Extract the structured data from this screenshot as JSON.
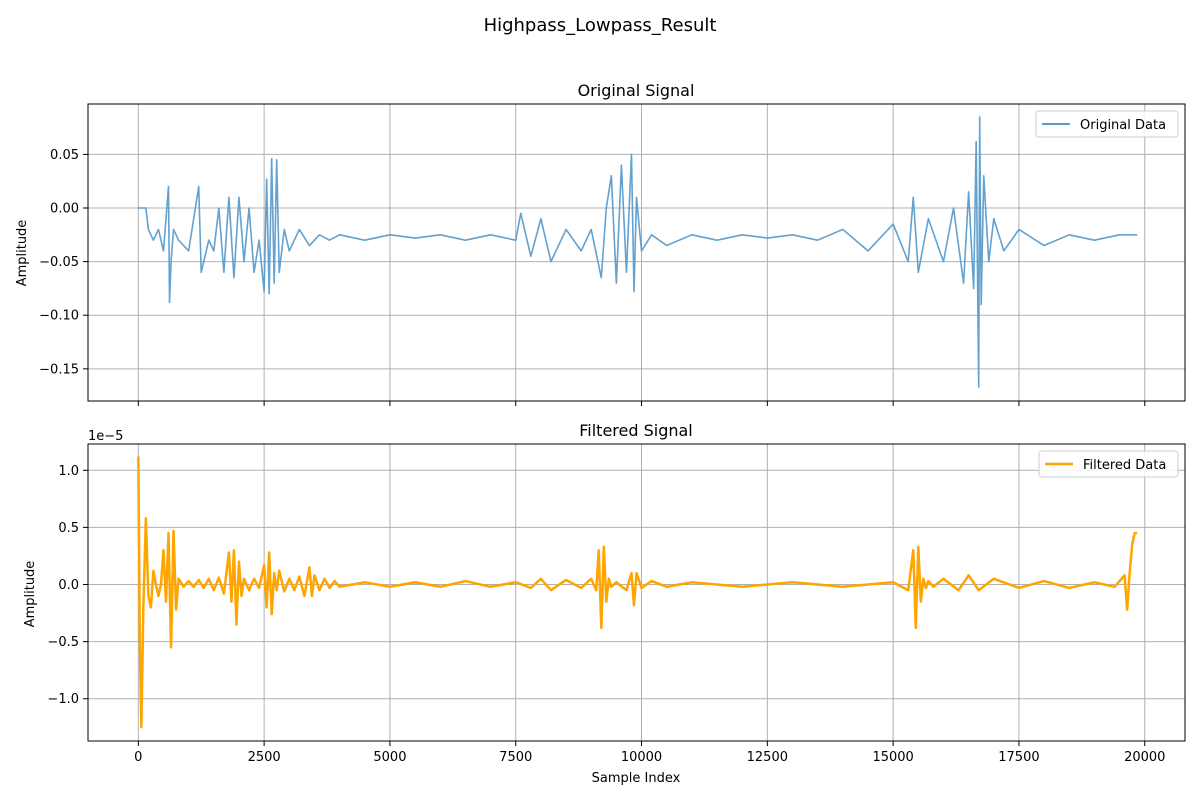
{
  "figure": {
    "title": "Highpass_Lowpass_Result"
  },
  "chart_data": [
    {
      "type": "line",
      "title": "Original Signal",
      "xlabel": "",
      "ylabel": "Amplitude",
      "xlim": [
        -1000,
        20800
      ],
      "ylim": [
        -0.18,
        0.097
      ],
      "x_ticks": [
        0,
        2500,
        5000,
        7500,
        10000,
        12500,
        15000,
        17500,
        20000
      ],
      "x_tick_labels": [
        "",
        "",
        "",
        "",
        "",
        "",
        "",
        "",
        ""
      ],
      "y_ticks": [
        0.05,
        0.0,
        -0.05,
        -0.1,
        -0.15
      ],
      "y_tick_labels": [
        "0.05",
        "0.00",
        "−0.05",
        "−0.10",
        "−0.15"
      ],
      "grid": true,
      "legend": {
        "position": "top-right",
        "entries": [
          "Original Data"
        ]
      },
      "series": [
        {
          "name": "Original Data",
          "color": "#5b9ccc",
          "x": [
            0,
            150,
            200,
            300,
            400,
            500,
            600,
            620,
            650,
            700,
            800,
            1000,
            1200,
            1250,
            1400,
            1500,
            1600,
            1700,
            1800,
            1900,
            2000,
            2100,
            2200,
            2300,
            2400,
            2500,
            2550,
            2600,
            2650,
            2700,
            2750,
            2800,
            2900,
            3000,
            3200,
            3400,
            3600,
            3800,
            4000,
            4500,
            5000,
            5500,
            6000,
            6500,
            7000,
            7500,
            7600,
            7800,
            8000,
            8200,
            8500,
            8800,
            9000,
            9200,
            9300,
            9400,
            9500,
            9600,
            9700,
            9800,
            9850,
            9900,
            10000,
            10200,
            10500,
            11000,
            11500,
            12000,
            12500,
            13000,
            13500,
            14000,
            14500,
            15000,
            15300,
            15400,
            15500,
            15700,
            16000,
            16200,
            16400,
            16500,
            16600,
            16650,
            16700,
            16720,
            16750,
            16800,
            16900,
            17000,
            17200,
            17500,
            18000,
            18500,
            19000,
            19500,
            19850
          ],
          "y": [
            0.0,
            0.0,
            -0.02,
            -0.03,
            -0.02,
            -0.04,
            0.02,
            -0.088,
            -0.05,
            -0.02,
            -0.03,
            -0.04,
            0.02,
            -0.06,
            -0.03,
            -0.04,
            0.0,
            -0.06,
            0.01,
            -0.065,
            0.01,
            -0.05,
            0.0,
            -0.06,
            -0.03,
            -0.078,
            0.027,
            -0.08,
            0.046,
            -0.07,
            0.045,
            -0.06,
            -0.02,
            -0.04,
            -0.02,
            -0.035,
            -0.025,
            -0.03,
            -0.025,
            -0.03,
            -0.025,
            -0.028,
            -0.025,
            -0.03,
            -0.025,
            -0.03,
            -0.005,
            -0.045,
            -0.01,
            -0.05,
            -0.02,
            -0.04,
            -0.02,
            -0.065,
            0.0,
            0.03,
            -0.07,
            0.04,
            -0.06,
            0.05,
            -0.078,
            0.01,
            -0.04,
            -0.025,
            -0.035,
            -0.025,
            -0.03,
            -0.025,
            -0.028,
            -0.025,
            -0.03,
            -0.02,
            -0.04,
            -0.015,
            -0.05,
            0.01,
            -0.06,
            -0.01,
            -0.05,
            0.0,
            -0.07,
            0.015,
            -0.075,
            0.062,
            -0.167,
            0.085,
            -0.09,
            0.03,
            -0.05,
            -0.01,
            -0.04,
            -0.02,
            -0.035,
            -0.025,
            -0.03,
            -0.025,
            -0.025
          ]
        }
      ]
    },
    {
      "type": "line",
      "title": "Filtered Signal",
      "xlabel": "Sample Index",
      "ylabel": "Amplitude",
      "y_scale_label": "1e−5",
      "xlim": [
        -1000,
        20800
      ],
      "ylim": [
        -1.37,
        1.23
      ],
      "x_ticks": [
        0,
        2500,
        5000,
        7500,
        10000,
        12500,
        15000,
        17500,
        20000
      ],
      "x_tick_labels": [
        "0",
        "2500",
        "5000",
        "7500",
        "10000",
        "12500",
        "15000",
        "17500",
        "20000"
      ],
      "y_ticks": [
        1.0,
        0.5,
        0.0,
        -0.5,
        -1.0
      ],
      "y_tick_labels": [
        "1.0",
        "0.5",
        "0.0",
        "−0.5",
        "−1.0"
      ],
      "grid": true,
      "legend": {
        "position": "top-right",
        "entries": [
          "Filtered Data"
        ]
      },
      "series": [
        {
          "name": "Filtered Data",
          "color": "#ffa500",
          "x": [
            0,
            30,
            60,
            100,
            150,
            200,
            250,
            300,
            350,
            400,
            450,
            500,
            550,
            600,
            650,
            700,
            750,
            800,
            900,
            1000,
            1100,
            1200,
            1300,
            1400,
            1500,
            1600,
            1700,
            1800,
            1850,
            1900,
            1950,
            2000,
            2050,
            2100,
            2200,
            2300,
            2400,
            2500,
            2550,
            2600,
            2650,
            2700,
            2750,
            2800,
            2900,
            3000,
            3100,
            3200,
            3300,
            3400,
            3450,
            3500,
            3600,
            3700,
            3800,
            3900,
            4000,
            4500,
            5000,
            5500,
            6000,
            6500,
            7000,
            7500,
            7800,
            8000,
            8200,
            8500,
            8800,
            9000,
            9100,
            9150,
            9200,
            9250,
            9300,
            9350,
            9400,
            9500,
            9700,
            9800,
            9850,
            9900,
            10000,
            10200,
            10500,
            11000,
            12000,
            13000,
            14000,
            15000,
            15300,
            15400,
            15450,
            15500,
            15550,
            15600,
            15650,
            15700,
            15800,
            16000,
            16300,
            16500,
            16700,
            17000,
            17500,
            18000,
            18500,
            19000,
            19400,
            19600,
            19650,
            19700,
            19750,
            19800,
            19850
          ],
          "y": [
            1.12,
            -0.5,
            -1.25,
            -0.2,
            0.58,
            -0.1,
            -0.2,
            0.12,
            0.0,
            -0.1,
            0.0,
            0.3,
            -0.15,
            0.45,
            -0.55,
            0.47,
            -0.22,
            0.05,
            -0.02,
            0.03,
            -0.02,
            0.04,
            -0.03,
            0.05,
            -0.05,
            0.06,
            -0.08,
            0.28,
            -0.15,
            0.3,
            -0.35,
            0.2,
            -0.1,
            0.05,
            -0.05,
            0.05,
            -0.03,
            0.17,
            -0.2,
            0.28,
            -0.26,
            0.1,
            -0.05,
            0.12,
            -0.06,
            0.05,
            -0.05,
            0.07,
            -0.1,
            0.15,
            -0.1,
            0.08,
            -0.05,
            0.05,
            -0.03,
            0.03,
            -0.02,
            0.02,
            -0.02,
            0.02,
            -0.02,
            0.03,
            -0.02,
            0.02,
            -0.03,
            0.05,
            -0.05,
            0.04,
            -0.03,
            0.05,
            -0.05,
            0.3,
            -0.38,
            0.33,
            -0.15,
            0.05,
            -0.02,
            0.02,
            -0.05,
            0.1,
            -0.18,
            0.1,
            -0.03,
            0.03,
            -0.02,
            0.02,
            -0.02,
            0.02,
            -0.02,
            0.02,
            -0.05,
            0.3,
            -0.38,
            0.33,
            -0.15,
            0.05,
            -0.03,
            0.03,
            -0.02,
            0.05,
            -0.05,
            0.08,
            -0.05,
            0.05,
            -0.03,
            0.03,
            -0.03,
            0.02,
            -0.02,
            0.08,
            -0.22,
            0.1,
            0.35,
            0.45,
            0.45
          ]
        }
      ]
    }
  ]
}
